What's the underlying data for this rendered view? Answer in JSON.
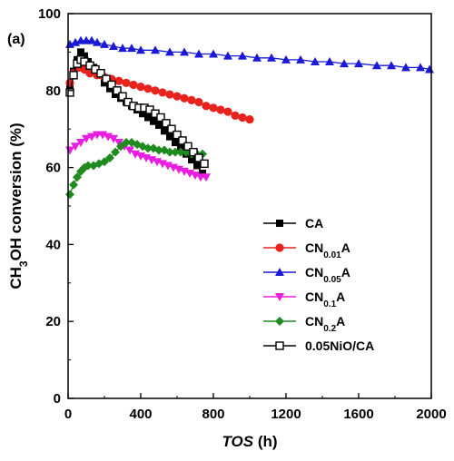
{
  "chart_data": {
    "type": "scatter",
    "panel_label": "(a)",
    "xlabel": "TOS (h)",
    "xlabel_parts": {
      "italic": "TOS",
      "rest": " (h)"
    },
    "ylabel": "CH3OH conversion (%)",
    "ylabel_parts": {
      "a": "CH",
      "sub": "3",
      "b": "OH conversion (%)"
    },
    "xlim": [
      0,
      2000
    ],
    "ylim": [
      0,
      100
    ],
    "xticks": [
      0,
      400,
      800,
      1200,
      1600,
      2000
    ],
    "yticks": [
      0,
      20,
      40,
      60,
      80,
      100
    ],
    "legend_position": "lower-right",
    "grid": false,
    "series": [
      {
        "name": "CA",
        "label_parts": {
          "main": "CA",
          "sub": "",
          "tail": ""
        },
        "color": "#000000",
        "marker": "square",
        "x": [
          10,
          30,
          50,
          70,
          90,
          110,
          140,
          170,
          200,
          230,
          260,
          290,
          320,
          350,
          380,
          410,
          440,
          470,
          500,
          530,
          560,
          590,
          620,
          650,
          680,
          710,
          740
        ],
        "y": [
          81.5,
          85,
          88,
          90,
          89,
          87.5,
          86,
          84,
          82,
          80.5,
          79,
          78,
          77,
          76,
          75,
          74,
          73,
          72,
          71,
          69.5,
          68,
          66.5,
          65,
          63.5,
          62,
          60.5,
          58.5
        ]
      },
      {
        "name": "CN0.01A",
        "label_parts": {
          "main": "CN",
          "sub": "0.01",
          "tail": "A"
        },
        "color": "#e8231e",
        "marker": "circle",
        "x": [
          10,
          30,
          60,
          90,
          120,
          160,
          200,
          240,
          280,
          320,
          360,
          400,
          440,
          480,
          520,
          560,
          600,
          640,
          680,
          720,
          760,
          800,
          840,
          880,
          920,
          960,
          1000
        ],
        "y": [
          82,
          84.5,
          86,
          85.5,
          84.5,
          84,
          83.5,
          83,
          82.5,
          82,
          81.5,
          81,
          80.5,
          80,
          79.5,
          79,
          78.5,
          78,
          77.5,
          77,
          76,
          75.5,
          75,
          74.5,
          73.5,
          73,
          72.5
        ]
      },
      {
        "name": "CN0.05A",
        "label_parts": {
          "main": "CN",
          "sub": "0.05",
          "tail": "A"
        },
        "color": "#1a1ad6",
        "marker": "triangle-up",
        "x": [
          10,
          40,
          70,
          100,
          130,
          160,
          200,
          250,
          300,
          350,
          400,
          480,
          560,
          640,
          720,
          800,
          880,
          960,
          1040,
          1120,
          1200,
          1280,
          1360,
          1440,
          1520,
          1600,
          1700,
          1780,
          1860,
          1940,
          1990
        ],
        "y": [
          92,
          92.5,
          93,
          93,
          93,
          92.5,
          92,
          91.5,
          91,
          91,
          90.5,
          90.5,
          90,
          90,
          89.5,
          89.5,
          89,
          89,
          88.5,
          88.5,
          88,
          88,
          87.5,
          87.5,
          87,
          87,
          86.5,
          86.5,
          86,
          86,
          85.5
        ]
      },
      {
        "name": "CN0.1A",
        "label_parts": {
          "main": "CN",
          "sub": "0.1",
          "tail": "A"
        },
        "color": "#e81ee0",
        "marker": "triangle-down",
        "x": [
          10,
          40,
          70,
          100,
          130,
          160,
          190,
          220,
          250,
          280,
          310,
          340,
          370,
          400,
          430,
          460,
          490,
          520,
          550,
          580,
          610,
          640,
          670,
          700,
          730,
          760
        ],
        "y": [
          64.5,
          65.5,
          66.5,
          67.5,
          68,
          68.5,
          68.5,
          68,
          67.5,
          66.5,
          65.5,
          64.5,
          63.5,
          63,
          62.5,
          62,
          61.5,
          61,
          60.5,
          60,
          59.5,
          59,
          58.5,
          58,
          57.5,
          57.5
        ]
      },
      {
        "name": "CN0.2A",
        "label_parts": {
          "main": "CN",
          "sub": "0.2",
          "tail": "A"
        },
        "color": "#1f8a1f",
        "marker": "diamond",
        "x": [
          10,
          30,
          50,
          70,
          90,
          110,
          140,
          170,
          200,
          230,
          260,
          290,
          320,
          350,
          380,
          410,
          440,
          470,
          500,
          530,
          560,
          590,
          620,
          650,
          680,
          710,
          740
        ],
        "y": [
          53,
          55.5,
          57.5,
          59,
          60,
          60.5,
          60.5,
          61,
          61.5,
          62.5,
          64,
          65.5,
          66.5,
          66.5,
          66,
          65.5,
          65,
          65,
          64.5,
          64.5,
          64,
          64,
          64,
          64,
          63.5,
          63.5,
          63.5
        ]
      },
      {
        "name": "0.05NiO/CA",
        "label_parts": {
          "main": "0.05NiO/CA",
          "sub": "",
          "tail": ""
        },
        "color": "#000000",
        "marker": "open-square",
        "x": [
          10,
          30,
          50,
          70,
          90,
          120,
          150,
          180,
          210,
          240,
          270,
          300,
          330,
          360,
          390,
          420,
          450,
          480,
          510,
          540,
          570,
          600,
          630,
          660,
          690,
          720,
          750
        ],
        "y": [
          79.5,
          84,
          87,
          88,
          87.5,
          86.5,
          85.5,
          84.5,
          83,
          81.5,
          80,
          78.5,
          77,
          76,
          75.5,
          75.5,
          75,
          74,
          73,
          71.5,
          70,
          68.5,
          67,
          65.5,
          64,
          62.5,
          61
        ]
      }
    ]
  }
}
